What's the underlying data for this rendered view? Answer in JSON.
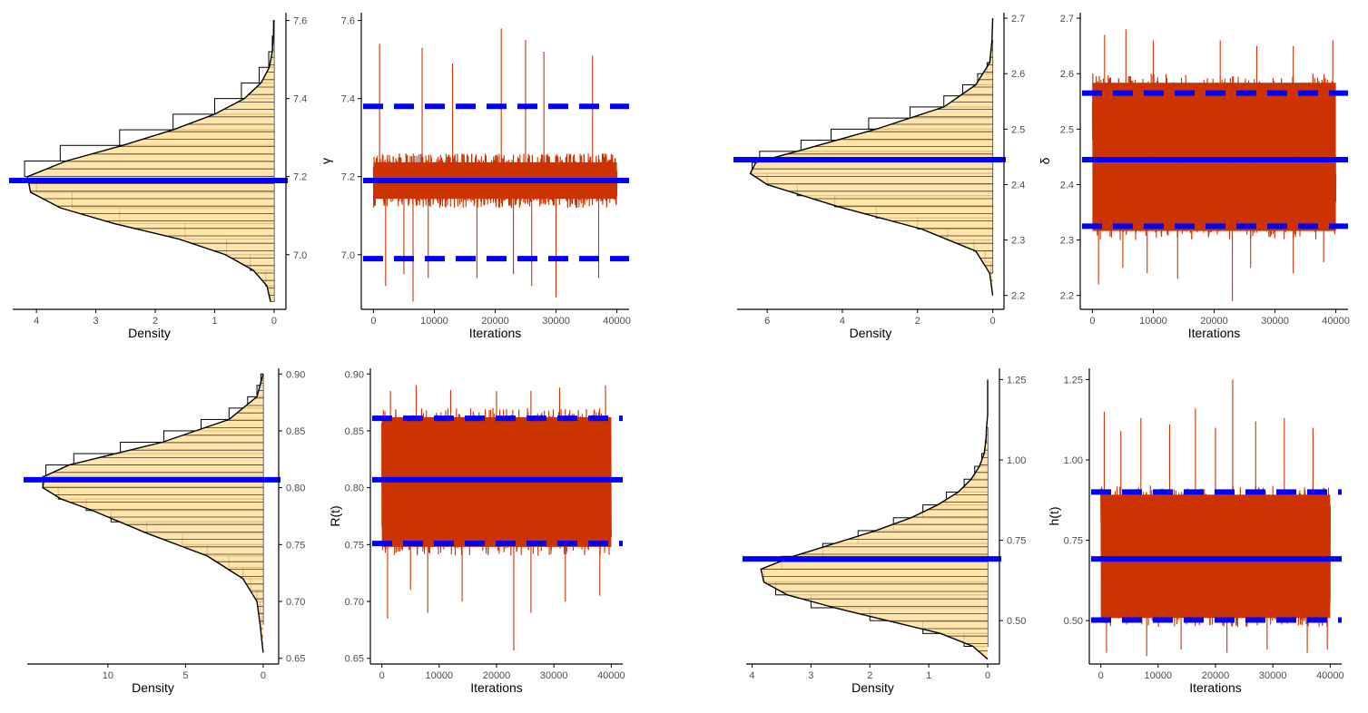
{
  "colors": {
    "hist_fill": "#FFE09A",
    "hist_line": "#000000",
    "trace": "#CC3300",
    "reference": "#0000FF",
    "axis": "#000000",
    "tick_text": "#4D4D4D"
  },
  "chart_data": [
    {
      "type": "histogram",
      "panel": "gamma-density",
      "orientation": "horizontal",
      "title": "",
      "xlabel": "Density",
      "ylabel": "",
      "xlim": [
        4.4,
        -0.2
      ],
      "ylim": [
        6.86,
        7.62
      ],
      "xticks": [
        4,
        3,
        2,
        1,
        0
      ],
      "xtick_labels": [
        "4",
        "3",
        "2",
        "1",
        "0"
      ],
      "yticks": [
        7.0,
        7.2,
        7.4,
        7.6
      ],
      "ytick_labels": [
        "7.0",
        "7.2",
        "7.4",
        "7.6"
      ],
      "y_axis_side": "right",
      "bins": [
        6.88,
        6.92,
        6.96,
        7.0,
        7.04,
        7.08,
        7.12,
        7.16,
        7.2,
        7.24,
        7.28,
        7.32,
        7.36,
        7.4,
        7.44,
        7.48,
        7.52,
        7.56,
        7.6
      ],
      "density": [
        0.06,
        0.14,
        0.4,
        0.8,
        1.5,
        2.6,
        3.4,
        4.0,
        4.2,
        3.6,
        2.6,
        1.7,
        1.0,
        0.55,
        0.25,
        0.09,
        0.03,
        0.01
      ],
      "density_curve": {
        "y": [
          6.88,
          6.92,
          6.96,
          7.0,
          7.04,
          7.08,
          7.12,
          7.16,
          7.2,
          7.24,
          7.28,
          7.32,
          7.36,
          7.4,
          7.44,
          7.48,
          7.52,
          7.56,
          7.6
        ],
        "x": [
          0.06,
          0.12,
          0.35,
          0.82,
          1.6,
          2.7,
          3.6,
          4.1,
          4.15,
          3.5,
          2.55,
          1.7,
          1.0,
          0.5,
          0.22,
          0.08,
          0.03,
          0.01,
          0.0
        ]
      },
      "reference_lines": [
        {
          "value": 7.19,
          "style": "solid"
        }
      ]
    },
    {
      "type": "line",
      "panel": "gamma-trace",
      "title": "",
      "xlabel": "Iterations",
      "ylabel": "γ",
      "xlim": [
        -2000,
        42000
      ],
      "ylim": [
        6.86,
        7.62
      ],
      "xticks": [
        0,
        10000,
        20000,
        30000,
        40000
      ],
      "xtick_labels": [
        "0",
        "10000",
        "20000",
        "30000",
        "40000"
      ],
      "yticks": [
        7.0,
        7.2,
        7.4,
        7.6
      ],
      "ytick_labels": [
        "7.0",
        "7.2",
        "7.4",
        "7.6"
      ],
      "n_iterations": 40000,
      "band": [
        7.12,
        7.26
      ],
      "spikes": [
        [
          2000,
          6.92
        ],
        [
          5000,
          6.95
        ],
        [
          6500,
          6.88
        ],
        [
          9000,
          6.94
        ],
        [
          17000,
          6.94
        ],
        [
          23000,
          6.95
        ],
        [
          26000,
          6.92
        ],
        [
          30000,
          6.89
        ],
        [
          37000,
          6.94
        ],
        [
          1000,
          7.54
        ],
        [
          8000,
          7.53
        ],
        [
          21000,
          7.58
        ],
        [
          28000,
          7.52
        ],
        [
          36000,
          7.51
        ],
        [
          13000,
          7.49
        ],
        [
          25000,
          7.55
        ]
      ],
      "reference_lines": [
        {
          "value": 6.99,
          "style": "dashed"
        },
        {
          "value": 7.19,
          "style": "solid"
        },
        {
          "value": 7.38,
          "style": "dashed"
        }
      ]
    },
    {
      "type": "histogram",
      "panel": "delta-density",
      "orientation": "horizontal",
      "title": "",
      "xlabel": "Density",
      "ylabel": "",
      "xlim": [
        6.8,
        -0.3
      ],
      "ylim": [
        2.175,
        2.71
      ],
      "xticks": [
        6,
        4,
        2,
        0
      ],
      "xtick_labels": [
        "6",
        "4",
        "2",
        "0"
      ],
      "yticks": [
        2.2,
        2.3,
        2.4,
        2.5,
        2.6,
        2.7
      ],
      "ytick_labels": [
        "2.2",
        "2.3",
        "2.4",
        "2.5",
        "2.6",
        "2.7"
      ],
      "y_axis_side": "right",
      "bins": [
        2.24,
        2.26,
        2.28,
        2.3,
        2.32,
        2.34,
        2.36,
        2.38,
        2.4,
        2.42,
        2.44,
        2.46,
        2.48,
        2.5,
        2.52,
        2.54,
        2.56,
        2.58,
        2.6,
        2.62,
        2.64,
        2.66
      ],
      "density": [
        0.05,
        0.2,
        0.5,
        1.2,
        2.0,
        3.1,
        4.2,
        5.2,
        6.0,
        6.4,
        6.2,
        5.1,
        4.3,
        3.3,
        2.2,
        1.3,
        0.8,
        0.4,
        0.15,
        0.05,
        0.02
      ],
      "density_curve": {
        "y": [
          2.2,
          2.24,
          2.28,
          2.32,
          2.36,
          2.4,
          2.42,
          2.44,
          2.46,
          2.5,
          2.54,
          2.58,
          2.62,
          2.66,
          2.7
        ],
        "x": [
          0.0,
          0.08,
          0.45,
          1.9,
          4.1,
          6.0,
          6.45,
          6.3,
          5.2,
          3.1,
          1.3,
          0.45,
          0.08,
          0.02,
          0.0
        ]
      },
      "reference_lines": [
        {
          "value": 2.445,
          "style": "solid"
        }
      ]
    },
    {
      "type": "line",
      "panel": "delta-trace",
      "title": "",
      "xlabel": "Iterations",
      "ylabel": "δ",
      "xlim": [
        -2000,
        42000
      ],
      "ylim": [
        2.175,
        2.71
      ],
      "xticks": [
        0,
        10000,
        20000,
        30000,
        40000
      ],
      "xtick_labels": [
        "0",
        "10000",
        "20000",
        "30000",
        "40000"
      ],
      "yticks": [
        2.2,
        2.3,
        2.4,
        2.5,
        2.6,
        2.7
      ],
      "ytick_labels": [
        "2.2",
        "2.3",
        "2.4",
        "2.5",
        "2.6",
        "2.7"
      ],
      "n_iterations": 40000,
      "band": [
        2.3,
        2.6
      ],
      "spikes": [
        [
          1000,
          2.22
        ],
        [
          5000,
          2.25
        ],
        [
          9000,
          2.24
        ],
        [
          14000,
          2.23
        ],
        [
          23000,
          2.19
        ],
        [
          26000,
          2.25
        ],
        [
          33000,
          2.24
        ],
        [
          38000,
          2.26
        ],
        [
          2000,
          2.67
        ],
        [
          5500,
          2.68
        ],
        [
          10000,
          2.66
        ],
        [
          21000,
          2.66
        ],
        [
          27000,
          2.65
        ],
        [
          33000,
          2.65
        ],
        [
          39500,
          2.66
        ]
      ],
      "reference_lines": [
        {
          "value": 2.325,
          "style": "dashed"
        },
        {
          "value": 2.445,
          "style": "solid"
        },
        {
          "value": 2.565,
          "style": "dashed"
        }
      ]
    },
    {
      "type": "histogram",
      "panel": "R-density",
      "orientation": "horizontal",
      "title": "",
      "xlabel": "Density",
      "ylabel": "",
      "xlim": [
        15.2,
        -1.0
      ],
      "ylim": [
        0.645,
        0.905
      ],
      "xticks": [
        10,
        5,
        0
      ],
      "xtick_labels": [
        "10",
        "5",
        "0"
      ],
      "yticks": [
        0.65,
        0.7,
        0.75,
        0.8,
        0.85,
        0.9
      ],
      "ytick_labels": [
        "0.65",
        "0.70",
        "0.75",
        "0.80",
        "0.85",
        "0.90"
      ],
      "y_axis_side": "right",
      "bins": [
        0.68,
        0.69,
        0.7,
        0.71,
        0.72,
        0.73,
        0.74,
        0.75,
        0.76,
        0.77,
        0.78,
        0.79,
        0.8,
        0.81,
        0.82,
        0.83,
        0.84,
        0.85,
        0.86,
        0.87,
        0.88,
        0.89,
        0.9
      ],
      "density": [
        0.1,
        0.2,
        0.4,
        0.8,
        1.3,
        2.2,
        3.6,
        5.2,
        7.5,
        9.8,
        11.4,
        13.2,
        14.2,
        14.0,
        12.2,
        9.2,
        6.4,
        4.0,
        2.2,
        1.0,
        0.4,
        0.15
      ],
      "density_curve": {
        "y": [
          0.655,
          0.68,
          0.7,
          0.72,
          0.74,
          0.76,
          0.78,
          0.79,
          0.8,
          0.81,
          0.82,
          0.84,
          0.86,
          0.88,
          0.9
        ],
        "x": [
          0.0,
          0.2,
          0.4,
          1.3,
          3.6,
          7.5,
          11.0,
          13.0,
          14.2,
          14.1,
          12.5,
          6.5,
          2.2,
          0.4,
          0.0
        ]
      },
      "reference_lines": [
        {
          "value": 0.807,
          "style": "solid"
        }
      ]
    },
    {
      "type": "line",
      "panel": "R-trace",
      "title": "",
      "xlabel": "Iterations",
      "ylabel": "R(t)",
      "xlim": [
        -2000,
        42000
      ],
      "ylim": [
        0.645,
        0.905
      ],
      "xticks": [
        0,
        10000,
        20000,
        30000,
        40000
      ],
      "xtick_labels": [
        "0",
        "10000",
        "20000",
        "30000",
        "40000"
      ],
      "yticks": [
        0.65,
        0.7,
        0.75,
        0.8,
        0.85,
        0.9
      ],
      "ytick_labels": [
        "0.65",
        "0.70",
        "0.75",
        "0.80",
        "0.85",
        "0.90"
      ],
      "n_iterations": 40000,
      "band": [
        0.74,
        0.87
      ],
      "spikes": [
        [
          1000,
          0.685
        ],
        [
          5000,
          0.71
        ],
        [
          8000,
          0.69
        ],
        [
          14000,
          0.7
        ],
        [
          23000,
          0.657
        ],
        [
          26000,
          0.69
        ],
        [
          32000,
          0.7
        ],
        [
          38000,
          0.705
        ],
        [
          1500,
          0.885
        ],
        [
          6000,
          0.89
        ],
        [
          12000,
          0.886
        ],
        [
          20000,
          0.885
        ],
        [
          26000,
          0.885
        ],
        [
          31000,
          0.888
        ],
        [
          39000,
          0.89
        ]
      ],
      "reference_lines": [
        {
          "value": 0.751,
          "style": "dashed"
        },
        {
          "value": 0.807,
          "style": "solid"
        },
        {
          "value": 0.861,
          "style": "dashed"
        }
      ]
    },
    {
      "type": "histogram",
      "panel": "h-density",
      "orientation": "horizontal",
      "title": "",
      "xlabel": "Density",
      "ylabel": "",
      "xlim": [
        4.1,
        -0.2
      ],
      "ylim": [
        0.365,
        1.285
      ],
      "xticks": [
        4,
        3,
        2,
        1,
        0
      ],
      "xtick_labels": [
        "4",
        "3",
        "2",
        "1",
        "0"
      ],
      "yticks": [
        0.5,
        0.75,
        1.0,
        1.25
      ],
      "ytick_labels": [
        "0.50",
        "0.75",
        "1.00",
        "1.25"
      ],
      "y_axis_side": "right",
      "bins": [
        0.42,
        0.46,
        0.5,
        0.54,
        0.58,
        0.62,
        0.66,
        0.7,
        0.74,
        0.78,
        0.82,
        0.86,
        0.9,
        0.94,
        0.98,
        1.02,
        1.06,
        1.1
      ],
      "density": [
        0.4,
        1.1,
        2.0,
        3.0,
        3.6,
        3.8,
        3.5,
        2.8,
        2.2,
        1.6,
        1.1,
        0.7,
        0.4,
        0.22,
        0.1,
        0.04,
        0.02
      ],
      "density_curve": {
        "y": [
          0.38,
          0.42,
          0.46,
          0.5,
          0.54,
          0.58,
          0.62,
          0.66,
          0.7,
          0.74,
          0.78,
          0.82,
          0.86,
          0.9,
          0.94,
          0.98,
          1.02,
          1.06,
          1.1,
          1.14,
          1.25
        ],
        "x": [
          0.0,
          0.25,
          0.8,
          1.7,
          2.6,
          3.4,
          3.8,
          3.85,
          3.3,
          2.6,
          1.9,
          1.3,
          0.85,
          0.5,
          0.28,
          0.14,
          0.06,
          0.03,
          0.02,
          0.0,
          0.0
        ]
      },
      "reference_lines": [
        {
          "value": 0.692,
          "style": "solid"
        }
      ]
    },
    {
      "type": "line",
      "panel": "h-trace",
      "title": "",
      "xlabel": "Iterations",
      "ylabel": "h(t)",
      "xlim": [
        -2000,
        42000
      ],
      "ylim": [
        0.365,
        1.285
      ],
      "xticks": [
        0,
        10000,
        20000,
        30000,
        40000
      ],
      "xtick_labels": [
        "0",
        "10000",
        "20000",
        "30000",
        "40000"
      ],
      "yticks": [
        0.5,
        0.75,
        1.0,
        1.25
      ],
      "ytick_labels": [
        "0.50",
        "0.75",
        "1.00",
        "1.25"
      ],
      "n_iterations": 40000,
      "band": [
        0.48,
        0.92
      ],
      "spikes": [
        [
          600,
          1.15
        ],
        [
          3500,
          1.09
        ],
        [
          7000,
          1.13
        ],
        [
          12000,
          1.11
        ],
        [
          16500,
          1.16
        ],
        [
          20000,
          1.1
        ],
        [
          23000,
          1.25
        ],
        [
          27000,
          1.12
        ],
        [
          32000,
          1.13
        ],
        [
          37000,
          1.1
        ],
        [
          1000,
          0.4
        ],
        [
          8000,
          0.39
        ],
        [
          14000,
          0.41
        ],
        [
          22000,
          0.4
        ],
        [
          29000,
          0.41
        ],
        [
          36000,
          0.4
        ],
        [
          39500,
          0.41
        ]
      ],
      "reference_lines": [
        {
          "value": 0.502,
          "style": "dashed"
        },
        {
          "value": 0.692,
          "style": "solid"
        },
        {
          "value": 0.9,
          "style": "dashed"
        }
      ]
    }
  ]
}
